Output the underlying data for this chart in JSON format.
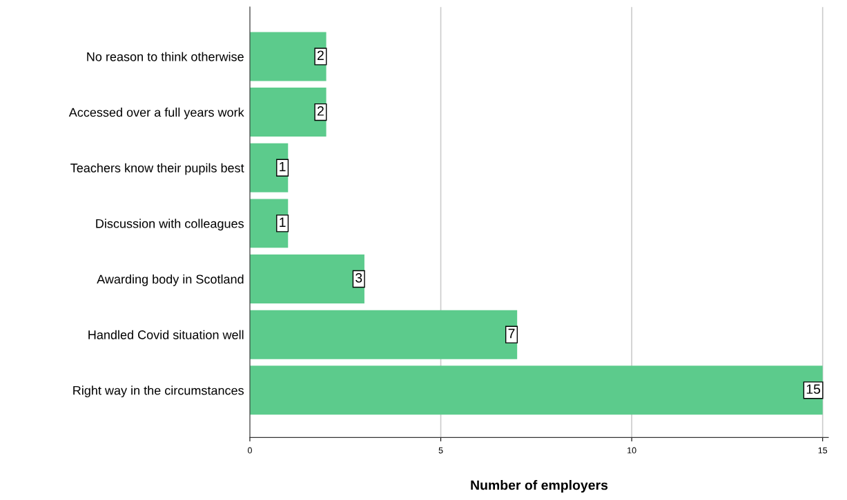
{
  "chart_data": {
    "type": "bar",
    "orientation": "horizontal",
    "xlabel": "Number of employers",
    "categories": [
      "No reason to think otherwise",
      "Accessed over a full years work",
      "Teachers know their pupils best",
      "Discussion with colleagues",
      "Awarding body in Scotland",
      "Handled Covid situation well",
      "Right way in the circumstances"
    ],
    "values": [
      2,
      2,
      1,
      1,
      3,
      7,
      15
    ],
    "color": "#5ccb8c",
    "xlim": [
      0,
      15.15
    ],
    "xticks": [
      0,
      5,
      10,
      15
    ],
    "grid": "x",
    "data_labels": true
  }
}
